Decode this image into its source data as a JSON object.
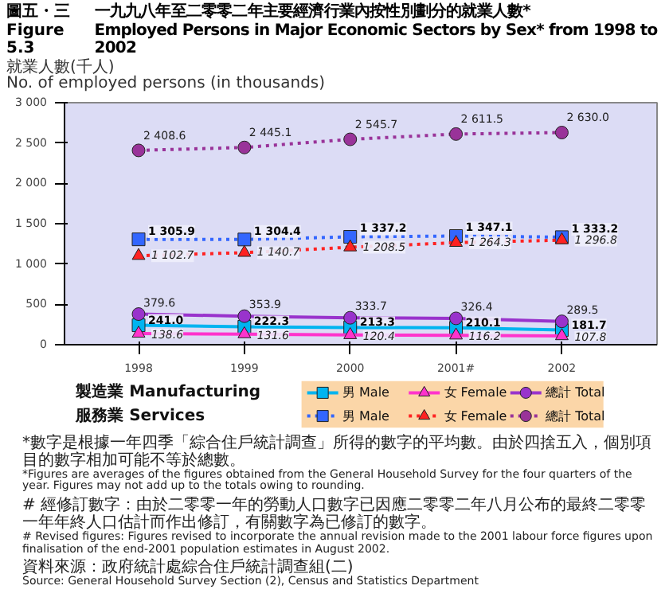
{
  "chart_data": {
    "type": "line",
    "title": "一九九八年至二零零二年主要經濟行業內按性別劃分的就業人數*\nEmployed Persons in Major Economic Sectors by Sex* from 1998 to 2002",
    "ylabel": "就業人數(千人)\nNo. of employed persons (in thousands)",
    "categories": [
      "1998",
      "1999",
      "2000",
      "2001#",
      "2002"
    ],
    "ylim": [
      0,
      3000
    ],
    "yticks": [
      {
        "value": 0,
        "label": "0"
      },
      {
        "value": 500,
        "label": "500"
      },
      {
        "value": 1000,
        "label": "1 000"
      },
      {
        "value": 1500,
        "label": "1 500"
      },
      {
        "value": 2000,
        "label": "2 000"
      },
      {
        "value": 2500,
        "label": "2 500"
      },
      {
        "value": 3000,
        "label": "3 000"
      }
    ],
    "grid": false,
    "legend": "bottom",
    "series": [
      {
        "name": "男 Male",
        "color": "#00b4f0",
        "marker": "square",
        "line_style": "solid",
        "values": [
          241.0,
          222.3,
          213.3,
          210.1,
          181.7
        ],
        "value_labels": [
          "241.0",
          "222.3",
          "213.3",
          "210.1",
          "181.7"
        ]
      },
      {
        "name": "女 Female",
        "color": "#ff33cc",
        "marker": "triangle",
        "line_style": "solid",
        "values": [
          138.6,
          131.6,
          120.4,
          116.2,
          107.8
        ],
        "value_labels": [
          "138.6",
          "131.6",
          "120.4",
          "116.2",
          "107.8"
        ]
      },
      {
        "name": "總計 Total",
        "color": "#9933cc",
        "marker": "circle",
        "line_style": "solid",
        "values": [
          379.6,
          353.9,
          333.7,
          326.4,
          289.5
        ],
        "value_labels": [
          "379.6",
          "353.9",
          "333.7",
          "326.4",
          "289.5"
        ]
      },
      {
        "name": "男 Male",
        "color": "#3366ff",
        "marker": "square",
        "line_style": "dotted",
        "values": [
          1305.9,
          1304.4,
          1337.2,
          1347.1,
          1333.2
        ],
        "value_labels": [
          "1 305.9",
          "1 304.4",
          "1 337.2",
          "1 347.1",
          "1 333.2"
        ]
      },
      {
        "name": "女 Female",
        "color": "#ff2222",
        "marker": "triangle",
        "line_style": "dotted",
        "values": [
          1102.7,
          1140.7,
          1208.5,
          1264.3,
          1296.8
        ],
        "value_labels": [
          "1 102.7",
          "1 140.7",
          "1 208.5",
          "1 264.3",
          "1 296.8"
        ]
      },
      {
        "name": "總計 Total",
        "color": "#993399",
        "marker": "circle",
        "line_style": "dotted",
        "values": [
          2408.6,
          2445.1,
          2545.7,
          2611.5,
          2630.0
        ],
        "value_labels": [
          "2 408.6",
          "2 445.1",
          "2 545.7",
          "2 611.5",
          "2 630.0"
        ]
      }
    ],
    "annotations": [
      "圖五・三 Figure 5.3",
      "製造業 Manufacturing",
      "服務業 Services",
      "*數字是根據一年四季「綜合住戶統計調查」所得的數字的平均數。由於四捨五入，個別項目的數字相加可能不等於總數。",
      "*Figures are averages of the figures obtained from the General Household Survey for the four quarters of the year. Figures may not add up to the totals owing to rounding.",
      "# 經修訂數字：由於二零零一年的勞動人口數字已因應二零零二年八月公布的最終二零零一年年終人口估計而作出修訂，有關數字為已修訂的數字。",
      "# Revised figures: Figures revised to incorporate the annual revision made to the 2001 labour force figures upon finalisation of the end-2001 population estimates in August 2002.",
      "資料來源：政府統計處綜合住戶統計調查組(二)",
      "Source: General Household Survey Section (2), Census and Statistics Department"
    ]
  }
}
